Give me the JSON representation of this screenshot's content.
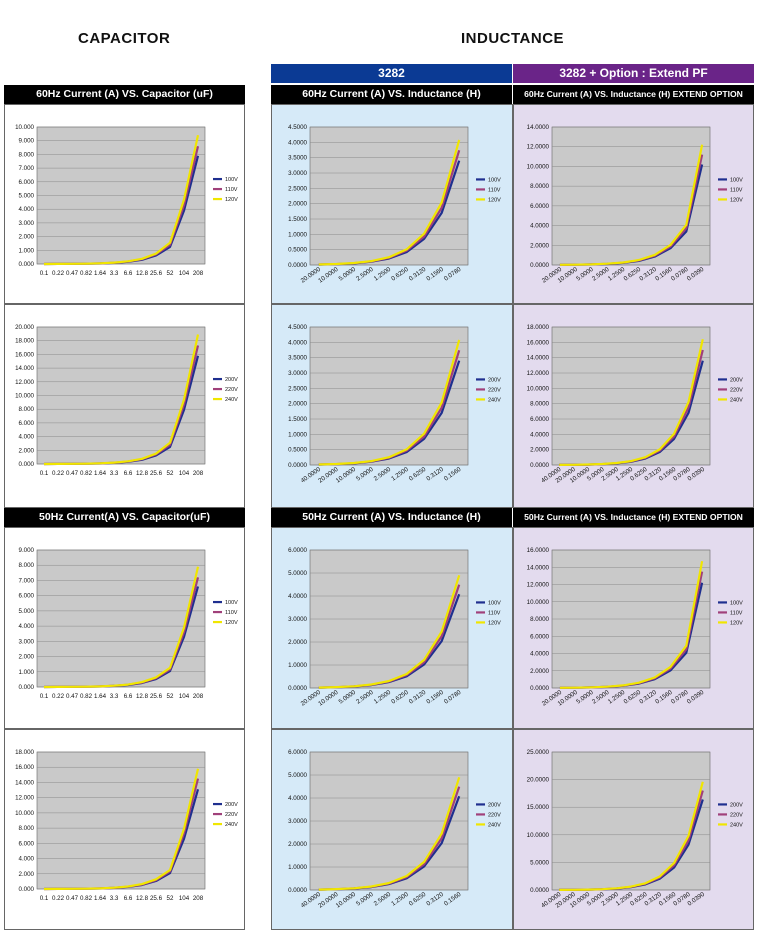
{
  "headings": {
    "capacitor": "CAPACITOR",
    "inductance": "INDUCTANCE"
  },
  "bands": {
    "model": "3282",
    "option": "3282 + Option : Extend PF"
  },
  "section_headers": {
    "cap60": "60Hz Current (A) VS. Capacitor (uF)",
    "ind60": "60Hz Current (A) VS. Inductance (H)",
    "ext60": "60Hz Current (A) VS. Inductance (H) EXTEND OPTION",
    "cap50": "50Hz Current(A) VS. Capacitor(uF)",
    "ind50": "50Hz  Current (A) VS. Inductance (H)",
    "ext50": "50Hz Current (A) VS. Inductance (H) EXTEND OPTION"
  },
  "colors": {
    "series": [
      "#1f2f8f",
      "#a0407a",
      "#f0e600"
    ],
    "plot_bg": "#c9c9c9",
    "band_blue": "#0b3a94",
    "band_purple": "#6a2488"
  },
  "chart_data": [
    {
      "id": "c1",
      "type": "line",
      "categories": [
        "0.1",
        "0.22",
        "0.47",
        "0.82",
        "1.64",
        "3.3",
        "6.6",
        "12.8",
        "25.6",
        "52",
        "104",
        "208"
      ],
      "ylim": [
        0,
        10
      ],
      "ytick_step": 1,
      "ytick_decimals": 3,
      "series": [
        {
          "name": "100V",
          "values": [
            0.003,
            0.006,
            0.012,
            0.02,
            0.04,
            0.08,
            0.16,
            0.31,
            0.62,
            1.25,
            3.9,
            7.9
          ]
        },
        {
          "name": "110V",
          "values": [
            0.003,
            0.007,
            0.013,
            0.022,
            0.045,
            0.09,
            0.18,
            0.35,
            0.7,
            1.4,
            4.3,
            8.6
          ]
        },
        {
          "name": "120V",
          "values": [
            0.003,
            0.007,
            0.014,
            0.024,
            0.05,
            0.1,
            0.2,
            0.38,
            0.76,
            1.55,
            4.7,
            9.4
          ]
        }
      ]
    },
    {
      "id": "c2",
      "type": "line",
      "categories": [
        "0.1",
        "0.22",
        "0.47",
        "0.82",
        "1.64",
        "3.3",
        "6.6",
        "12.8",
        "25.6",
        "52",
        "104",
        "208"
      ],
      "ylim": [
        0,
        20
      ],
      "ytick_step": 2,
      "ytick_decimals": 3,
      "series": [
        {
          "name": "200V",
          "values": [
            0.006,
            0.012,
            0.024,
            0.04,
            0.08,
            0.16,
            0.32,
            0.62,
            1.25,
            2.5,
            7.9,
            15.8
          ]
        },
        {
          "name": "220V",
          "values": [
            0.007,
            0.013,
            0.027,
            0.045,
            0.09,
            0.18,
            0.36,
            0.7,
            1.4,
            2.8,
            8.7,
            17.3
          ]
        },
        {
          "name": "240V",
          "values": [
            0.007,
            0.014,
            0.03,
            0.05,
            0.1,
            0.2,
            0.4,
            0.76,
            1.52,
            3.1,
            9.4,
            18.9
          ]
        }
      ]
    },
    {
      "id": "c3",
      "type": "line",
      "categories": [
        "0.1",
        "0.22",
        "0.47",
        "0.82",
        "1.64",
        "3.3",
        "6.6",
        "12.8",
        "25.6",
        "52",
        "104",
        "208"
      ],
      "ylim": [
        0,
        9
      ],
      "ytick_step": 1,
      "ytick_decimals": 3,
      "series": [
        {
          "name": "100V",
          "values": [
            0.003,
            0.005,
            0.01,
            0.017,
            0.034,
            0.07,
            0.13,
            0.26,
            0.52,
            1.05,
            3.3,
            6.6
          ]
        },
        {
          "name": "110V",
          "values": [
            0.003,
            0.006,
            0.011,
            0.019,
            0.038,
            0.077,
            0.15,
            0.29,
            0.58,
            1.15,
            3.6,
            7.2
          ]
        },
        {
          "name": "120V",
          "values": [
            0.003,
            0.006,
            0.012,
            0.021,
            0.041,
            0.083,
            0.16,
            0.32,
            0.63,
            1.26,
            3.9,
            7.9
          ]
        }
      ]
    },
    {
      "id": "c4",
      "type": "line",
      "categories": [
        "0.1",
        "0.22",
        "0.47",
        "0.82",
        "1.64",
        "3.3",
        "6.6",
        "12.8",
        "25.6",
        "52",
        "104",
        "208"
      ],
      "ylim": [
        0,
        18
      ],
      "ytick_step": 2,
      "ytick_decimals": 3,
      "series": [
        {
          "name": "200V",
          "values": [
            0.005,
            0.01,
            0.021,
            0.035,
            0.07,
            0.14,
            0.27,
            0.53,
            1.05,
            2.1,
            6.6,
            13.1
          ]
        },
        {
          "name": "220V",
          "values": [
            0.006,
            0.011,
            0.023,
            0.039,
            0.077,
            0.15,
            0.3,
            0.58,
            1.16,
            2.3,
            7.3,
            14.5
          ]
        },
        {
          "name": "240V",
          "values": [
            0.006,
            0.012,
            0.025,
            0.042,
            0.084,
            0.17,
            0.33,
            0.64,
            1.27,
            2.5,
            7.9,
            15.8
          ]
        }
      ]
    },
    {
      "id": "i1",
      "type": "line",
      "categories": [
        "20.0000",
        "10.0000",
        "5.0000",
        "2.5000",
        "1.2500",
        "0.6250",
        "0.3120",
        "0.1560",
        "0.0780"
      ],
      "ylim": [
        0,
        4.5
      ],
      "ytick_step": 0.5,
      "ytick_decimals": 4,
      "series": [
        {
          "name": "100V",
          "values": [
            0.013,
            0.027,
            0.053,
            0.106,
            0.212,
            0.42,
            0.85,
            1.7,
            3.4
          ]
        },
        {
          "name": "110V",
          "values": [
            0.015,
            0.029,
            0.058,
            0.117,
            0.233,
            0.47,
            0.93,
            1.87,
            3.74
          ]
        },
        {
          "name": "120V",
          "values": [
            0.016,
            0.032,
            0.064,
            0.127,
            0.255,
            0.51,
            1.02,
            2.04,
            4.08
          ]
        }
      ]
    },
    {
      "id": "i2",
      "type": "line",
      "categories": [
        "40.0000",
        "20.0000",
        "10.0000",
        "5.0000",
        "2.5000",
        "1.2500",
        "0.6250",
        "0.3120",
        "0.1560"
      ],
      "ylim": [
        0,
        4.5
      ],
      "ytick_step": 0.5,
      "ytick_decimals": 4,
      "series": [
        {
          "name": "200V",
          "values": [
            0.013,
            0.027,
            0.053,
            0.106,
            0.212,
            0.42,
            0.85,
            1.7,
            3.4
          ]
        },
        {
          "name": "220V",
          "values": [
            0.015,
            0.029,
            0.058,
            0.117,
            0.233,
            0.47,
            0.93,
            1.87,
            3.74
          ]
        },
        {
          "name": "240V",
          "values": [
            0.016,
            0.032,
            0.064,
            0.127,
            0.255,
            0.51,
            1.02,
            2.04,
            4.08
          ]
        }
      ]
    },
    {
      "id": "i3",
      "type": "line",
      "categories": [
        "20.0000",
        "10.0000",
        "5.0000",
        "2.5000",
        "1.2500",
        "0.6250",
        "0.3120",
        "0.1560",
        "0.0780"
      ],
      "ylim": [
        0,
        6
      ],
      "ytick_step": 1,
      "ytick_decimals": 4,
      "series": [
        {
          "name": "100V",
          "values": [
            0.016,
            0.032,
            0.064,
            0.127,
            0.255,
            0.51,
            1.02,
            2.04,
            4.08
          ]
        },
        {
          "name": "110V",
          "values": [
            0.018,
            0.035,
            0.07,
            0.14,
            0.28,
            0.56,
            1.12,
            2.25,
            4.49
          ]
        },
        {
          "name": "120V",
          "values": [
            0.019,
            0.038,
            0.076,
            0.153,
            0.306,
            0.61,
            1.22,
            2.45,
            4.9
          ]
        }
      ]
    },
    {
      "id": "i4",
      "type": "line",
      "categories": [
        "40.0000",
        "20.0000",
        "10.0000",
        "5.0000",
        "2.5000",
        "1.2500",
        "0.6250",
        "0.3120",
        "0.1560"
      ],
      "ylim": [
        0,
        6
      ],
      "ytick_step": 1,
      "ytick_decimals": 4,
      "series": [
        {
          "name": "200V",
          "values": [
            0.016,
            0.032,
            0.064,
            0.127,
            0.255,
            0.51,
            1.02,
            2.04,
            4.08
          ]
        },
        {
          "name": "220V",
          "values": [
            0.018,
            0.035,
            0.07,
            0.14,
            0.28,
            0.56,
            1.12,
            2.25,
            4.49
          ]
        },
        {
          "name": "240V",
          "values": [
            0.019,
            0.038,
            0.076,
            0.153,
            0.306,
            0.61,
            1.22,
            2.45,
            4.9
          ]
        }
      ]
    },
    {
      "id": "e1",
      "type": "line",
      "categories": [
        "20.0000",
        "10.0000",
        "5.0000",
        "2.5000",
        "1.2500",
        "0.6250",
        "0.3120",
        "0.1560",
        "0.0780",
        "0.0390"
      ],
      "ylim": [
        0,
        14
      ],
      "ytick_step": 2,
      "ytick_decimals": 4,
      "series": [
        {
          "name": "100V",
          "values": [
            0.013,
            0.027,
            0.053,
            0.106,
            0.212,
            0.42,
            0.85,
            1.7,
            3.4,
            10.2
          ]
        },
        {
          "name": "110V",
          "values": [
            0.015,
            0.029,
            0.058,
            0.117,
            0.233,
            0.47,
            0.93,
            1.87,
            3.74,
            11.2
          ]
        },
        {
          "name": "120V",
          "values": [
            0.016,
            0.032,
            0.064,
            0.127,
            0.255,
            0.51,
            1.02,
            2.04,
            4.08,
            12.2
          ]
        }
      ]
    },
    {
      "id": "e2",
      "type": "line",
      "categories": [
        "40.0000",
        "20.0000",
        "10.0000",
        "5.0000",
        "2.5000",
        "1.2500",
        "0.6250",
        "0.3120",
        "0.1560",
        "0.0780",
        "0.0390"
      ],
      "ylim": [
        0,
        18
      ],
      "ytick_step": 2,
      "ytick_decimals": 4,
      "series": [
        {
          "name": "200V",
          "values": [
            0.013,
            0.027,
            0.053,
            0.106,
            0.212,
            0.42,
            0.85,
            1.7,
            3.4,
            6.8,
            13.6
          ]
        },
        {
          "name": "220V",
          "values": [
            0.015,
            0.029,
            0.058,
            0.117,
            0.233,
            0.47,
            0.93,
            1.87,
            3.74,
            7.5,
            15.0
          ]
        },
        {
          "name": "240V",
          "values": [
            0.016,
            0.032,
            0.064,
            0.127,
            0.255,
            0.51,
            1.02,
            2.04,
            4.08,
            8.2,
            16.4
          ]
        }
      ]
    },
    {
      "id": "e3",
      "type": "line",
      "categories": [
        "20.0000",
        "10.0000",
        "5.0000",
        "2.5000",
        "1.2500",
        "0.6250",
        "0.3120",
        "0.1560",
        "0.0780",
        "0.0390"
      ],
      "ylim": [
        0,
        16
      ],
      "ytick_step": 2,
      "ytick_decimals": 4,
      "series": [
        {
          "name": "100V",
          "values": [
            0.016,
            0.032,
            0.064,
            0.127,
            0.255,
            0.51,
            1.02,
            2.04,
            4.08,
            12.2
          ]
        },
        {
          "name": "110V",
          "values": [
            0.018,
            0.035,
            0.07,
            0.14,
            0.28,
            0.56,
            1.12,
            2.25,
            4.49,
            13.5
          ]
        },
        {
          "name": "120V",
          "values": [
            0.019,
            0.038,
            0.076,
            0.153,
            0.306,
            0.61,
            1.22,
            2.45,
            4.9,
            14.7
          ]
        }
      ]
    },
    {
      "id": "e4",
      "type": "line",
      "categories": [
        "40.0000",
        "20.0000",
        "10.0000",
        "5.0000",
        "2.5000",
        "1.2500",
        "0.6250",
        "0.3120",
        "0.1560",
        "0.0780",
        "0.0390"
      ],
      "ylim": [
        0,
        25
      ],
      "ytick_step": 5,
      "ytick_decimals": 4,
      "series": [
        {
          "name": "200V",
          "values": [
            0.016,
            0.032,
            0.064,
            0.127,
            0.255,
            0.51,
            1.02,
            2.04,
            4.08,
            8.2,
            16.4
          ]
        },
        {
          "name": "220V",
          "values": [
            0.018,
            0.035,
            0.07,
            0.14,
            0.28,
            0.56,
            1.12,
            2.25,
            4.49,
            9.0,
            18.0
          ]
        },
        {
          "name": "240V",
          "values": [
            0.019,
            0.038,
            0.076,
            0.153,
            0.306,
            0.61,
            1.22,
            2.45,
            4.9,
            9.8,
            19.6
          ]
        }
      ]
    }
  ]
}
